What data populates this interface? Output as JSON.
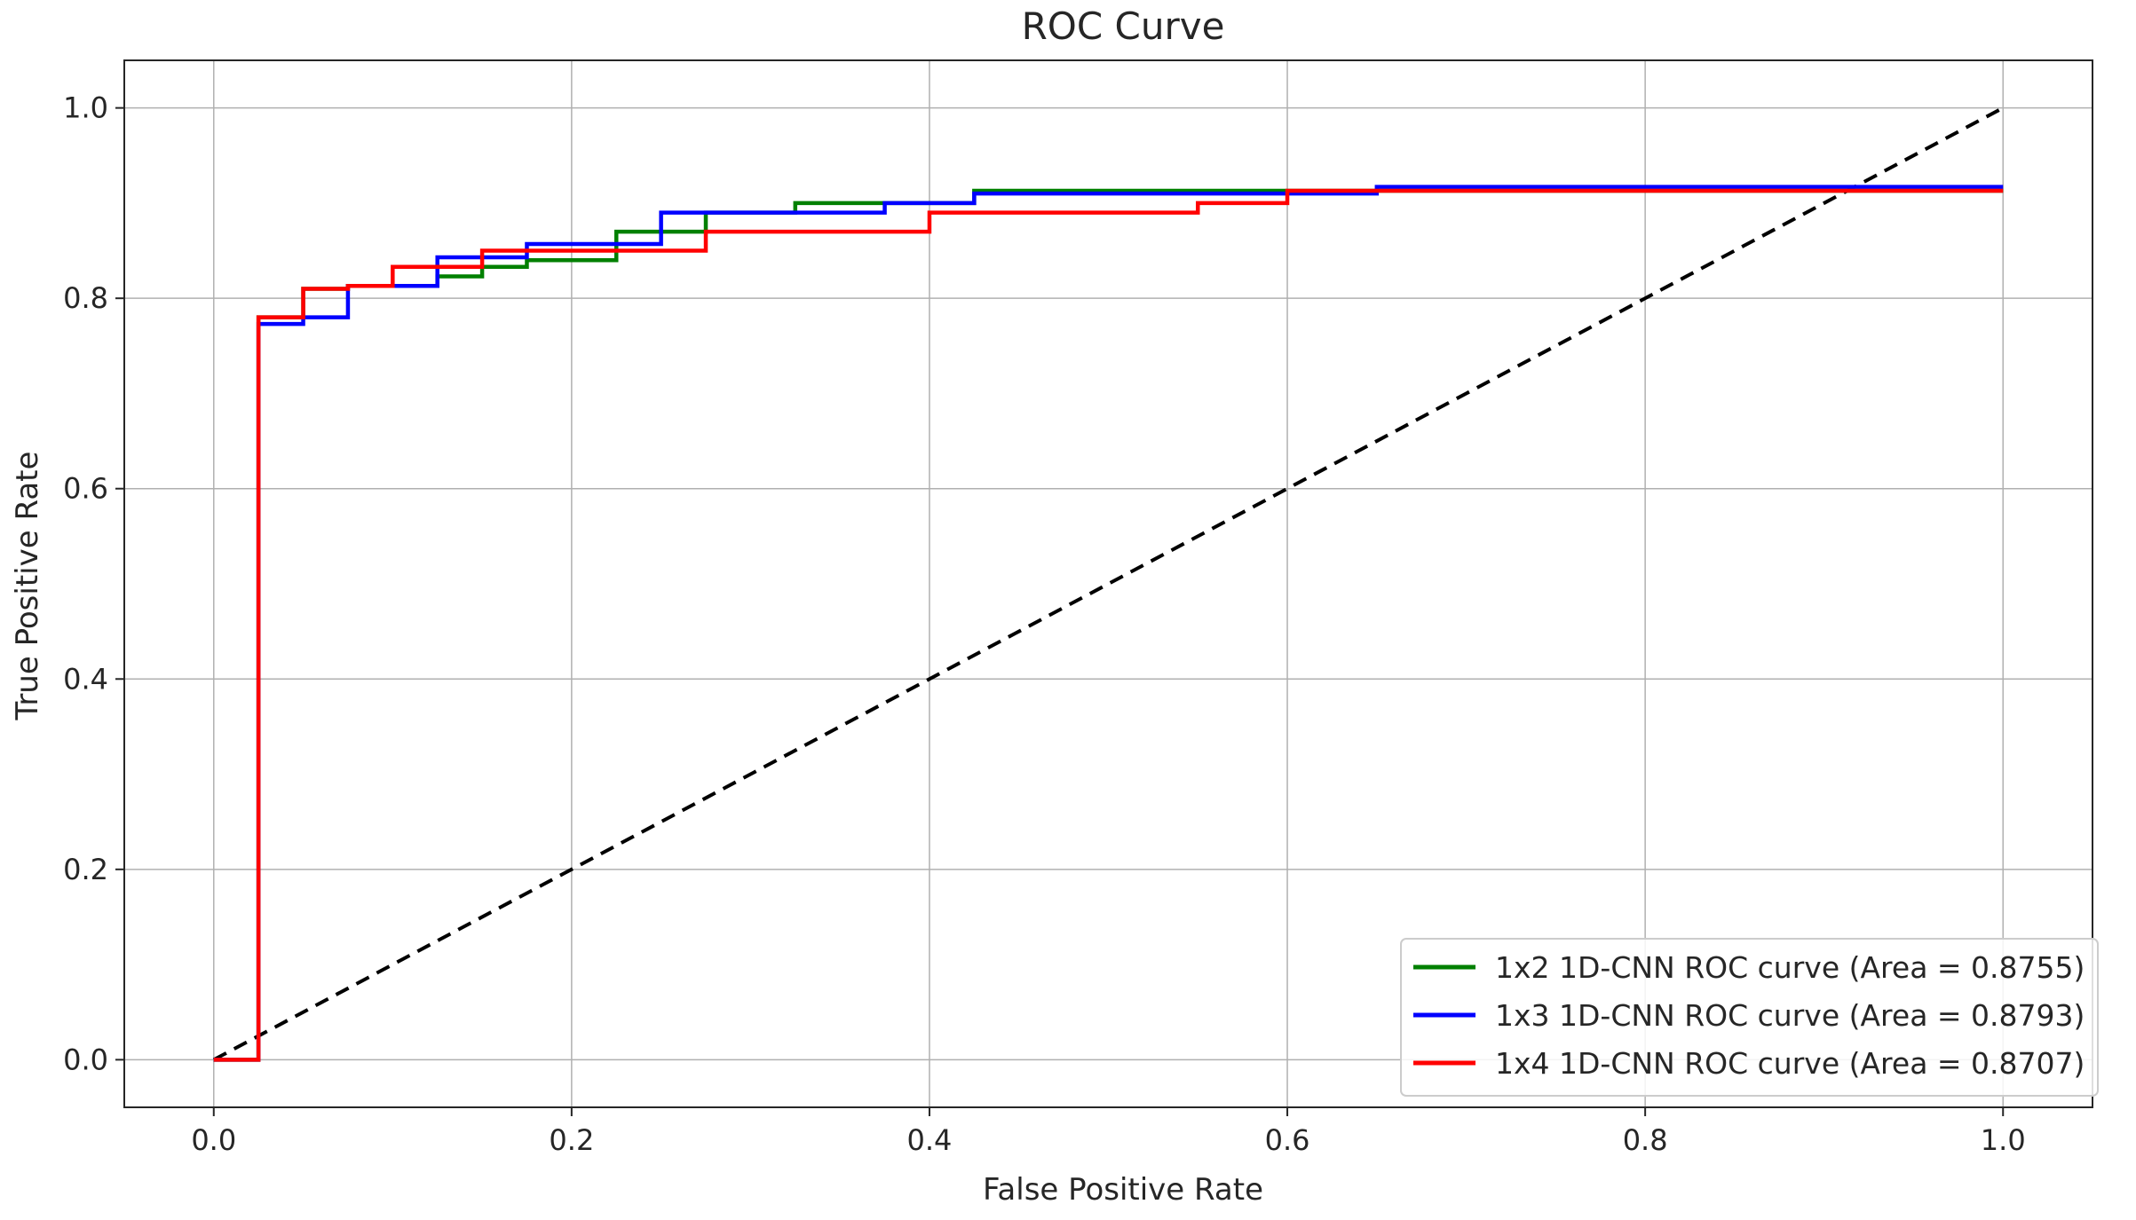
{
  "chart_data": {
    "type": "line",
    "title": "ROC Curve",
    "xlabel": "False Positive Rate",
    "ylabel": "True Positive Rate",
    "xlim": [
      -0.05,
      1.05
    ],
    "ylim": [
      -0.05,
      1.05
    ],
    "xticks": [
      "0.0",
      "0.2",
      "0.4",
      "0.6",
      "0.8",
      "1.0"
    ],
    "yticks": [
      "0.0",
      "0.2",
      "0.4",
      "0.6",
      "0.8",
      "1.0"
    ],
    "grid": true,
    "legend_position": "lower-right",
    "series": [
      {
        "name": "1x2 1D-CNN ROC curve (Area = 0.8755)",
        "color": "#008000",
        "step": true,
        "x": [
          0.0,
          0.025,
          0.025,
          0.05,
          0.075,
          0.1,
          0.125,
          0.15,
          0.175,
          0.225,
          0.275,
          0.325,
          0.375,
          0.425,
          0.65,
          1.0
        ],
        "y": [
          0.0,
          0.0,
          0.78,
          0.81,
          0.813,
          0.813,
          0.823,
          0.833,
          0.84,
          0.87,
          0.89,
          0.9,
          0.9,
          0.913,
          0.913,
          0.913
        ]
      },
      {
        "name": "1x3 1D-CNN ROC curve (Area = 0.8793)",
        "color": "#0000ff",
        "step": true,
        "x": [
          0.0,
          0.025,
          0.025,
          0.05,
          0.075,
          0.125,
          0.175,
          0.25,
          0.375,
          0.425,
          0.65,
          1.0
        ],
        "y": [
          0.0,
          0.0,
          0.773,
          0.78,
          0.813,
          0.843,
          0.857,
          0.89,
          0.9,
          0.91,
          0.917,
          0.917
        ]
      },
      {
        "name": "1x4 1D-CNN ROC curve (Area = 0.8707)",
        "color": "#ff0000",
        "step": true,
        "x": [
          0.0,
          0.025,
          0.025,
          0.05,
          0.075,
          0.1,
          0.15,
          0.225,
          0.275,
          0.4,
          0.55,
          0.6,
          1.0
        ],
        "y": [
          0.0,
          0.0,
          0.78,
          0.81,
          0.813,
          0.833,
          0.85,
          0.85,
          0.87,
          0.89,
          0.9,
          0.913,
          0.913
        ]
      }
    ],
    "reference_line": {
      "x": [
        0.0,
        1.0
      ],
      "y": [
        0.0,
        1.0
      ],
      "color": "#000000",
      "style": "dashed"
    }
  }
}
